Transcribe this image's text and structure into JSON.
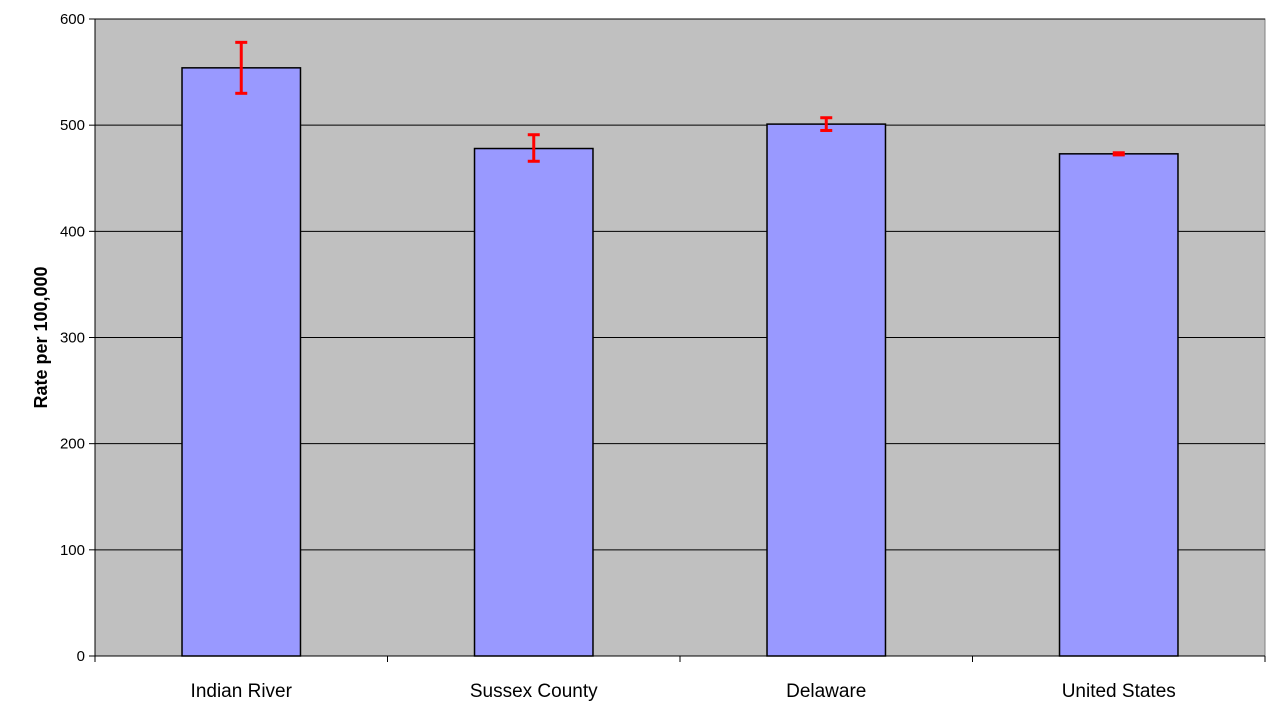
{
  "chart_data": {
    "type": "bar",
    "title": "",
    "xlabel": "",
    "ylabel": "Rate per 100,000",
    "ylim": [
      0,
      600
    ],
    "yticks": [
      0,
      100,
      200,
      300,
      400,
      500,
      600
    ],
    "grid": true,
    "categories": [
      "Indian River",
      "Sussex County",
      "Delaware",
      "United States"
    ],
    "series": [
      {
        "values": [
          554,
          478,
          501,
          473
        ],
        "error_low": [
          530,
          466,
          495,
          472
        ],
        "error_high": [
          578,
          491,
          507,
          474
        ]
      }
    ],
    "colors": {
      "bar_fill": "#9999ff",
      "bar_stroke": "#000000",
      "error_bar": "#ff0000",
      "plot_background": "#c0c0c0",
      "gridline": "#000000"
    }
  }
}
